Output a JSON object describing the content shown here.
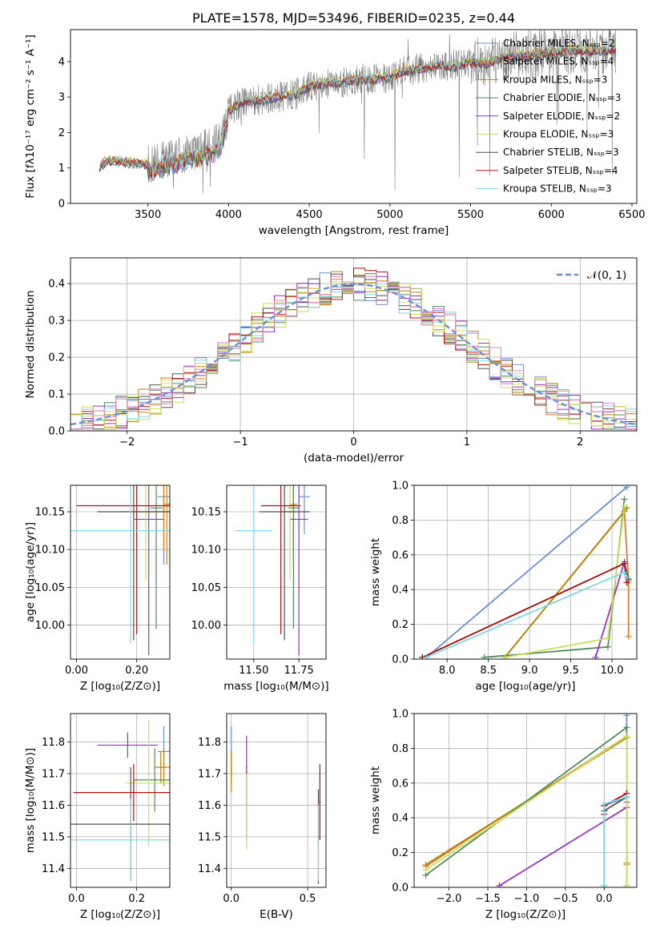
{
  "title": "PLATE=1578, MJD=53496, FIBERID=0235, z=0.44",
  "colors": {
    "Chabrier MILES": "#6a8fd8",
    "Salpeter MILES": "#e07b2a",
    "Kroupa MILES": "#b8860b",
    "Chabrier ELODIE": "#4f8a5a",
    "Salpeter ELODIE": "#9b30c8",
    "Kroupa ELODIE": "#c8e05a",
    "Chabrier STELIB": "#505050",
    "Salpeter STELIB": "#b01010",
    "Kroupa STELIB": "#7fd8e6",
    "spectrum": "#808080",
    "normal": "#6a8fd8",
    "grid": "#b0b0b0"
  },
  "chart_data": [
    {
      "id": "spectrum",
      "type": "line",
      "title": "PLATE=1578, MJD=53496, FIBERID=0235, z=0.44",
      "xlabel": "wavelength [Angstrom, rest frame]",
      "ylabel": "Flux [fλ10⁻¹⁷ erg cm⁻² s⁻¹ A⁻¹]",
      "xlim": [
        3020,
        6530
      ],
      "ylim": [
        0,
        4.9
      ],
      "xticks": [
        3500,
        4000,
        4500,
        5000,
        5500,
        6000,
        6500
      ],
      "yticks": [
        0,
        1,
        2,
        3,
        4
      ],
      "grid": false,
      "legend_loc": "upper right",
      "continuum_x": [
        3200,
        3250,
        3300,
        3400,
        3500,
        3550,
        3600,
        3700,
        3800,
        3900,
        3950,
        4000,
        4100,
        4200,
        4300,
        4400,
        4500,
        4600,
        4700,
        4800,
        4900,
        5000,
        5100,
        5200,
        5300,
        5400,
        5500,
        5600,
        5700,
        5800,
        5900,
        6000,
        6100,
        6200,
        6300,
        6400
      ],
      "continuum_y": [
        1.05,
        1.2,
        1.2,
        1.15,
        1.1,
        1.15,
        1.25,
        1.35,
        1.5,
        1.6,
        1.8,
        2.6,
        2.9,
        2.9,
        3.0,
        3.05,
        3.3,
        3.4,
        3.4,
        3.5,
        3.5,
        3.55,
        3.75,
        3.8,
        3.9,
        3.85,
        4.0,
        3.95,
        4.1,
        4.15,
        4.2,
        4.25,
        4.3,
        4.3,
        4.3,
        4.35
      ],
      "series": [
        {
          "name": "Chabrier MILES, Nₛₛₚ=2",
          "key": "Chabrier MILES"
        },
        {
          "name": "Salpeter MILES, Nₛₛₚ=4",
          "key": "Salpeter MILES"
        },
        {
          "name": "Kroupa MILES, Nₛₛₚ=3",
          "key": "Kroupa MILES"
        },
        {
          "name": "Chabrier ELODIE, Nₛₛₚ=3",
          "key": "Chabrier ELODIE"
        },
        {
          "name": "Salpeter ELODIE, Nₛₛₚ=2",
          "key": "Salpeter ELODIE"
        },
        {
          "name": "Kroupa ELODIE, Nₛₛₚ=3",
          "key": "Kroupa ELODIE"
        },
        {
          "name": "Chabrier STELIB, Nₛₛₚ=3",
          "key": "Chabrier STELIB"
        },
        {
          "name": "Salpeter STELIB, Nₛₛₚ=4",
          "key": "Salpeter STELIB"
        },
        {
          "name": "Kroupa STELIB, Nₛₛₚ=3",
          "key": "Kroupa STELIB"
        }
      ]
    },
    {
      "id": "residuals",
      "type": "line",
      "xlabel": "(data-model)/error",
      "ylabel": "Normed distribution",
      "xlim": [
        -2.5,
        2.5
      ],
      "ylim": [
        0,
        0.47
      ],
      "xticks": [
        -2,
        -1,
        0,
        1,
        2
      ],
      "yticks": [
        0.0,
        0.1,
        0.2,
        0.3,
        0.4
      ],
      "grid": true,
      "legend_loc": "upper right",
      "reference_label": "𝒩(0, 1)",
      "bin_width": 0.1
    },
    {
      "id": "age_vs_Z",
      "type": "scatter",
      "xlabel": "Z [log₁₀(Z/Z⊙)]",
      "ylabel": "age  [log₁₀(age/yr)]",
      "xlim": [
        -0.02,
        0.31
      ],
      "ylim": [
        9.955,
        10.185
      ],
      "xticks": [
        0.0,
        0.2
      ],
      "yticks": [
        10.0,
        10.05,
        10.1,
        10.15
      ],
      "grid": true,
      "crosses": [
        {
          "key": "Chabrier MILES",
          "x": 0.29,
          "xerr": 0.02,
          "y": 10.17,
          "yerr": 0.09
        },
        {
          "key": "Salpeter MILES",
          "x": 0.3,
          "xerr": 0.01,
          "y": 10.16,
          "yerr": 0.08
        },
        {
          "key": "Kroupa MILES",
          "x": 0.29,
          "xerr": 0.1,
          "y": 10.15,
          "yerr": 0.05
        },
        {
          "key": "Chabrier ELODIE",
          "x": 0.265,
          "xerr": 0.02,
          "y": 10.155,
          "yerr": 0.16
        },
        {
          "key": "Salpeter ELODIE",
          "x": 0.24,
          "xerr": 0.05,
          "y": 10.14,
          "yerr": 0.18
        },
        {
          "key": "Kroupa ELODIE",
          "x": 0.23,
          "xerr": 0.08,
          "y": 10.15,
          "yerr": 0.09
        },
        {
          "key": "Chabrier STELIB",
          "x": 0.19,
          "xerr": 0.12,
          "y": 10.15,
          "yerr": 0.17
        },
        {
          "key": "Salpeter STELIB",
          "x": 0.2,
          "xerr": 0.2,
          "y": 10.158,
          "yerr": 0.17
        },
        {
          "key": "Kroupa STELIB",
          "x": 0.18,
          "xerr": 0.2,
          "y": 10.125,
          "yerr": 0.15
        }
      ]
    },
    {
      "id": "age_vs_mass",
      "type": "scatter",
      "xlabel": "mass [log₁₀(M/M⊙)]",
      "ylabel": "",
      "xlim": [
        11.35,
        11.9
      ],
      "ylim": [
        9.955,
        10.185
      ],
      "xticks": [
        11.5,
        11.75
      ],
      "yticks": [
        10.0,
        10.05,
        10.1,
        10.15
      ],
      "grid": true,
      "crosses": [
        {
          "key": "Chabrier MILES",
          "x": 11.78,
          "xerr": 0.03,
          "y": 10.17,
          "yerr": 0.05
        },
        {
          "key": "Salpeter MILES",
          "x": 11.72,
          "xerr": 0.02,
          "y": 10.16,
          "yerr": 0.08
        },
        {
          "key": "Kroupa MILES",
          "x": 11.72,
          "xerr": 0.02,
          "y": 10.15,
          "yerr": 0.05
        },
        {
          "key": "Chabrier ELODIE",
          "x": 11.72,
          "xerr": 0.03,
          "y": 10.155,
          "yerr": 0.16
        },
        {
          "key": "Salpeter ELODIE",
          "x": 11.75,
          "xerr": 0.05,
          "y": 10.14,
          "yerr": 0.18
        },
        {
          "key": "Kroupa ELODIE",
          "x": 11.7,
          "xerr": 0.05,
          "y": 10.15,
          "yerr": 0.09
        },
        {
          "key": "Chabrier STELIB",
          "x": 11.67,
          "xerr": 0.14,
          "y": 10.15,
          "yerr": 0.17
        },
        {
          "key": "Salpeter STELIB",
          "x": 11.65,
          "xerr": 0.11,
          "y": 10.158,
          "yerr": 0.17
        },
        {
          "key": "Kroupa STELIB",
          "x": 11.5,
          "xerr": 0.1,
          "y": 10.125,
          "yerr": 0.15
        }
      ]
    },
    {
      "id": "weight_vs_age",
      "type": "line",
      "xlabel": "age  [log₁₀(age/yr)]",
      "ylabel": "mass weight",
      "xlim": [
        7.6,
        10.3
      ],
      "ylim": [
        0,
        1
      ],
      "xticks": [
        8.0,
        8.5,
        9.0,
        9.5,
        10.0
      ],
      "yticks": [
        0.0,
        0.2,
        0.4,
        0.6,
        0.8,
        1.0
      ],
      "grid": true,
      "series": [
        {
          "key": "Chabrier MILES",
          "x": [
            7.75,
            10.18
          ],
          "y": [
            0.01,
            0.99
          ]
        },
        {
          "key": "Salpeter MILES",
          "x": [
            8.7,
            10.15,
            10.2,
            10.2
          ],
          "y": [
            0.01,
            0.85,
            0.45,
            0.13
          ]
        },
        {
          "key": "Kroupa MILES",
          "x": [
            8.7,
            10.18
          ],
          "y": [
            0.01,
            0.87
          ]
        },
        {
          "key": "Chabrier ELODIE",
          "x": [
            8.45,
            9.95,
            10.15
          ],
          "y": [
            0.01,
            0.07,
            0.92
          ]
        },
        {
          "key": "Salpeter ELODIE",
          "x": [
            9.8,
            10.15
          ],
          "y": [
            0.01,
            0.56
          ]
        },
        {
          "key": "Kroupa ELODIE",
          "x": [
            8.7,
            9.95,
            10.15
          ],
          "y": [
            0.01,
            0.12,
            0.88
          ]
        },
        {
          "key": "Chabrier STELIB",
          "x": [
            7.7,
            10.15,
            10.2
          ],
          "y": [
            0.01,
            0.55,
            0.46
          ]
        },
        {
          "key": "Salpeter STELIB",
          "x": [
            7.7,
            10.15,
            10.18
          ],
          "y": [
            0.01,
            0.55,
            0.44
          ]
        },
        {
          "key": "Kroupa STELIB",
          "x": [
            7.75,
            10.15,
            10.18
          ],
          "y": [
            0.01,
            0.5,
            0.47
          ]
        }
      ]
    },
    {
      "id": "mass_vs_Z",
      "type": "scatter",
      "xlabel": "Z [log₁₀(Z/Z⊙)]",
      "ylabel": "mass [log₁₀(M/M⊙)]",
      "xlim": [
        -0.02,
        0.31
      ],
      "ylim": [
        11.34,
        11.89
      ],
      "xticks": [
        0.0,
        0.2
      ],
      "yticks": [
        11.4,
        11.5,
        11.6,
        11.7,
        11.8
      ],
      "grid": true,
      "crosses": [
        {
          "key": "Chabrier MILES",
          "x": 0.29,
          "xerr": 0.02,
          "y": 11.77,
          "yerr": 0.08
        },
        {
          "key": "Salpeter MILES",
          "x": 0.29,
          "xerr": 0.02,
          "y": 11.72,
          "yerr": 0.06
        },
        {
          "key": "Kroupa MILES",
          "x": 0.28,
          "xerr": 0.02,
          "y": 11.72,
          "yerr": 0.05
        },
        {
          "key": "Chabrier ELODIE",
          "x": 0.26,
          "xerr": 0.07,
          "y": 11.68,
          "yerr": 0.1
        },
        {
          "key": "Salpeter ELODIE",
          "x": 0.17,
          "xerr": 0.1,
          "y": 11.79,
          "yerr": 0.04
        },
        {
          "key": "Kroupa ELODIE",
          "x": 0.24,
          "xerr": 0.08,
          "y": 11.67,
          "yerr": 0.2
        },
        {
          "key": "Chabrier STELIB",
          "x": 0.18,
          "xerr": 0.21,
          "y": 11.54,
          "yerr": 0.18
        },
        {
          "key": "Salpeter STELIB",
          "x": 0.19,
          "xerr": 0.2,
          "y": 11.64,
          "yerr": 0.09
        },
        {
          "key": "Kroupa STELIB",
          "x": 0.18,
          "xerr": 0.2,
          "y": 11.49,
          "yerr": 0.13
        }
      ]
    },
    {
      "id": "mass_vs_ebv",
      "type": "scatter",
      "xlabel": "E(B-V)",
      "ylabel": "",
      "xlim": [
        -0.03,
        0.62
      ],
      "ylim": [
        11.34,
        11.89
      ],
      "xticks": [
        0.0,
        0.5
      ],
      "yticks": [
        11.4,
        11.5,
        11.6,
        11.7,
        11.8
      ],
      "grid": true,
      "crosses": [
        {
          "key": "Chabrier MILES",
          "x": 0.0,
          "xerr": 0.005,
          "y": 11.77,
          "yerr": 0.08
        },
        {
          "key": "Salpeter MILES",
          "x": 0.0,
          "xerr": 0.005,
          "y": 11.7,
          "yerr": 0.06
        },
        {
          "key": "Kroupa MILES",
          "x": 0.0,
          "xerr": 0.005,
          "y": 11.72,
          "yerr": 0.05
        },
        {
          "key": "Chabrier ELODIE",
          "x": 0.1,
          "xerr": 0.005,
          "y": 11.6,
          "yerr": 0.11
        },
        {
          "key": "Salpeter ELODIE",
          "x": 0.1,
          "xerr": 0.005,
          "y": 11.72,
          "yerr": 0.1
        },
        {
          "key": "Kroupa ELODIE",
          "x": 0.1,
          "xerr": 0.005,
          "y": 11.58,
          "yerr": 0.12
        },
        {
          "key": "Chabrier STELIB",
          "x": 0.57,
          "xerr": 0.005,
          "y": 11.5,
          "yerr": 0.15
        },
        {
          "key": "Salpeter STELIB",
          "x": 0.58,
          "xerr": 0.005,
          "y": 11.61,
          "yerr": 0.12
        },
        {
          "key": "Kroupa STELIB",
          "x": 0.57,
          "xerr": 0.005,
          "y": 11.48,
          "yerr": 0.12
        }
      ]
    },
    {
      "id": "weight_vs_Z",
      "type": "line",
      "xlabel": "Z [log₁₀(Z/Z⊙)]",
      "ylabel": "mass weight",
      "xlim": [
        -2.45,
        0.42
      ],
      "ylim": [
        0,
        1
      ],
      "xticks": [
        -2.0,
        -1.5,
        -1.0,
        -0.5,
        0.0
      ],
      "yticks": [
        0.0,
        0.2,
        0.4,
        0.6,
        0.8,
        1.0
      ],
      "grid": true,
      "series": [
        {
          "key": "Chabrier MILES",
          "x": [
            0.0,
            0.0,
            0.29,
            0.29
          ],
          "y": [
            0.01,
            0.47,
            0.52,
            0.99
          ]
        },
        {
          "key": "Salpeter MILES",
          "x": [
            -2.3,
            0.29,
            0.29
          ],
          "y": [
            0.12,
            0.87,
            0.13
          ]
        },
        {
          "key": "Kroupa MILES",
          "x": [
            -2.3,
            0.29,
            0.29
          ],
          "y": [
            0.13,
            0.86,
            0.14
          ]
        },
        {
          "key": "Chabrier ELODIE",
          "x": [
            -2.3,
            0.29,
            0.29
          ],
          "y": [
            0.07,
            0.92,
            0.01
          ]
        },
        {
          "key": "Salpeter ELODIE",
          "x": [
            -1.35,
            0.29,
            0.29
          ],
          "y": [
            0.01,
            0.46,
            0.49
          ]
        },
        {
          "key": "Kroupa ELODIE",
          "x": [
            -2.3,
            0.29,
            0.29
          ],
          "y": [
            0.1,
            0.87,
            0.01
          ]
        },
        {
          "key": "Chabrier STELIB",
          "x": [
            0.0,
            0.29
          ],
          "y": [
            0.44,
            0.52
          ]
        },
        {
          "key": "Salpeter STELIB",
          "x": [
            0.0,
            0.0,
            0.29
          ],
          "y": [
            0.42,
            0.47,
            0.54
          ]
        },
        {
          "key": "Kroupa STELIB",
          "x": [
            0.0,
            0.0,
            0.29
          ],
          "y": [
            0.01,
            0.48,
            0.52
          ]
        }
      ]
    }
  ]
}
